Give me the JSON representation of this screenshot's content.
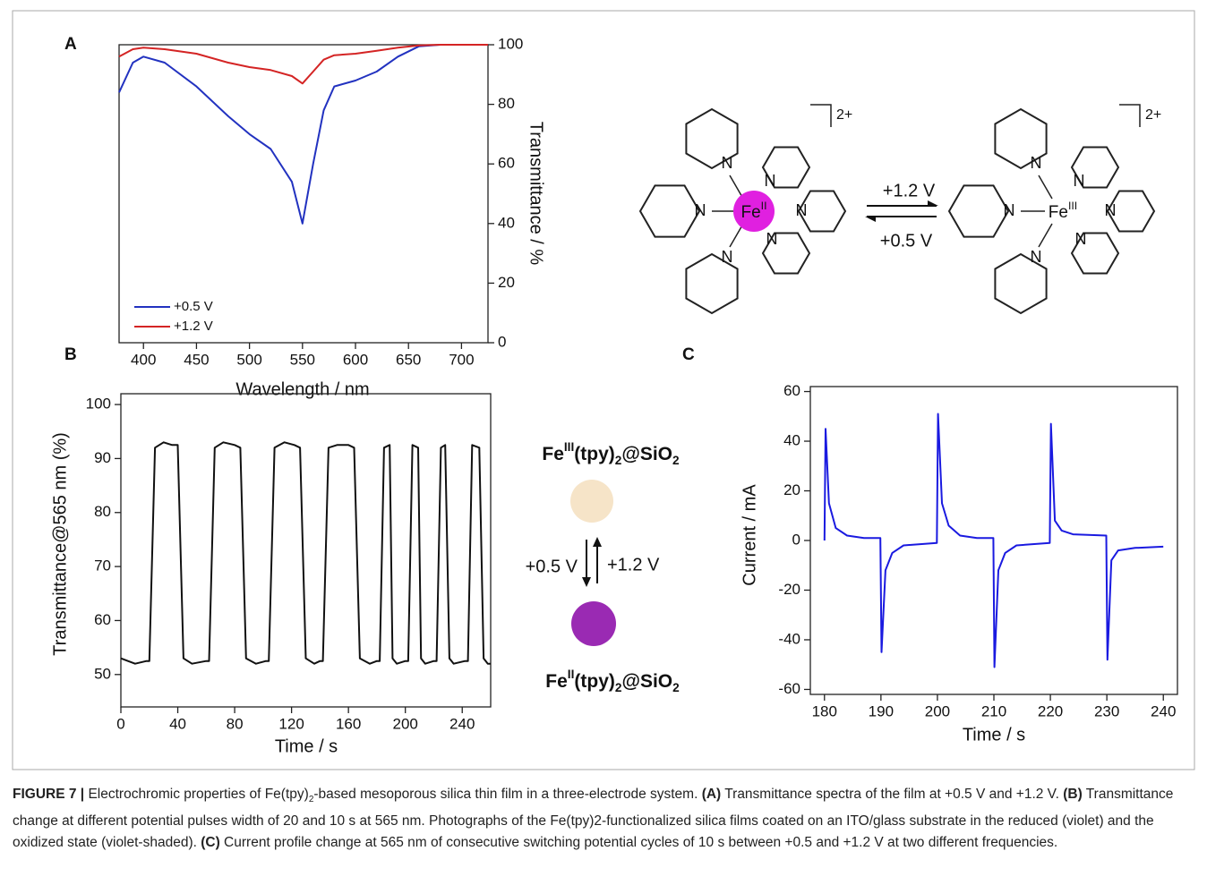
{
  "chart_data": [
    {
      "type": "line",
      "panel": "A",
      "xlabel": "Wavelength / nm",
      "ylabel": "Transmittance / %",
      "yaxis_side": "right",
      "legend": "lower left",
      "x": [
        377,
        390,
        400,
        420,
        450,
        480,
        500,
        520,
        540,
        550,
        560,
        570,
        580,
        600,
        620,
        640,
        660,
        680,
        725
      ],
      "series": [
        {
          "name": "+0.5 V",
          "color": "#2232c0",
          "values": [
            84,
            94,
            96,
            94,
            86,
            76,
            70,
            65,
            54,
            40,
            60,
            78,
            86,
            88,
            91,
            96,
            99.5,
            100,
            100
          ]
        },
        {
          "name": "+1.2 V",
          "color": "#d42424",
          "values": [
            96,
            98.5,
            99,
            98.5,
            97,
            94,
            92.5,
            91.5,
            89.5,
            87,
            91,
            95,
            96.5,
            97,
            98,
            99,
            99.8,
            100,
            100
          ]
        }
      ],
      "xlim": [
        377,
        725
      ],
      "xticks": [
        400,
        450,
        500,
        550,
        600,
        650,
        700
      ],
      "ylim": [
        0,
        100
      ],
      "yticks": [
        0,
        20,
        40,
        60,
        80,
        100
      ]
    },
    {
      "type": "line",
      "panel": "B",
      "xlabel": "Time / s",
      "ylabel": "Transmittance@565 nm (%)",
      "yaxis_side": "left",
      "x": [
        0,
        5,
        10,
        18,
        20,
        24,
        30,
        36,
        40,
        44,
        50,
        60,
        62,
        66,
        72,
        80,
        84,
        88,
        95,
        102,
        104,
        108,
        115,
        122,
        126,
        130,
        136,
        140,
        142,
        146,
        152,
        160,
        164,
        168,
        175,
        180,
        182,
        185,
        189,
        191,
        194,
        200,
        202,
        205,
        209,
        211,
        214,
        220,
        222,
        225,
        228,
        231,
        234,
        242,
        244,
        247,
        252,
        255,
        258,
        260
      ],
      "series": [
        {
          "color": "#111111",
          "values": [
            53,
            52.5,
            52,
            52.5,
            52.5,
            92,
            93,
            92.5,
            92.5,
            53,
            52,
            52.5,
            52.5,
            92,
            93,
            92.5,
            92,
            53,
            52,
            52.5,
            52.5,
            92,
            93,
            92.5,
            92,
            53,
            52,
            52.5,
            52.5,
            92,
            92.5,
            92.5,
            92,
            53,
            52,
            52.5,
            52.5,
            92,
            92.5,
            53,
            52,
            52.5,
            52.5,
            92.5,
            92,
            53,
            52,
            52.5,
            52.5,
            92,
            92.5,
            53,
            52,
            52.5,
            52.5,
            92.5,
            92,
            53,
            52,
            52
          ]
        }
      ],
      "xlim": [
        0,
        260
      ],
      "xticks": [
        0,
        40,
        80,
        120,
        160,
        200,
        240
      ],
      "ylim": [
        44,
        102
      ],
      "yticks": [
        50,
        60,
        70,
        80,
        90,
        100
      ]
    },
    {
      "type": "line",
      "panel": "C",
      "xlabel": "Time / s",
      "ylabel": "Current / mA",
      "yaxis_side": "left",
      "x": [
        180,
        180.2,
        180.8,
        182,
        184,
        187,
        189.9,
        190.1,
        190.8,
        192,
        194,
        199.9,
        200.1,
        200.8,
        202,
        204,
        207,
        209.9,
        210.1,
        210.8,
        212,
        214,
        219.9,
        220.1,
        220.8,
        222,
        224,
        229.9,
        230.1,
        230.8,
        232,
        235,
        240
      ],
      "series": [
        {
          "color": "#1a1ae0",
          "values": [
            0,
            45,
            15,
            5,
            2,
            1,
            1,
            -45,
            -12,
            -5,
            -2,
            -1,
            51,
            15,
            6,
            2,
            1,
            1,
            -51,
            -12,
            -5,
            -2,
            -1,
            47,
            8,
            4,
            2.5,
            2,
            -48,
            -8,
            -4,
            -3,
            -2.5
          ]
        }
      ],
      "xlim": [
        177.5,
        242.5
      ],
      "xticks": [
        180,
        190,
        200,
        210,
        220,
        230,
        240
      ],
      "ylim": [
        -62,
        62
      ],
      "yticks": [
        -60,
        -40,
        -20,
        0,
        20,
        40,
        60
      ]
    }
  ],
  "scheme": {
    "nitrogen": "N",
    "charge": "2+",
    "forward": "+1.2 V",
    "backward": "+0.5 V",
    "left_metal": [
      {
        "text": "Fe",
        "style": "normal"
      },
      {
        "text": "II",
        "style": "sup"
      }
    ],
    "right_metal": [
      {
        "text": "Fe",
        "style": "normal"
      },
      {
        "text": "III",
        "style": "sup"
      }
    ]
  },
  "photos": {
    "top": [
      {
        "text": "Fe",
        "style": "normal"
      },
      {
        "text": "III",
        "style": "sup"
      },
      {
        "text": "(tpy)",
        "style": "normal"
      },
      {
        "text": "2",
        "style": "sub"
      },
      {
        "text": "@SiO",
        "style": "normal"
      },
      {
        "text": "2",
        "style": "sub"
      }
    ],
    "bottom": [
      {
        "text": "Fe",
        "style": "normal"
      },
      {
        "text": "II",
        "style": "sup"
      },
      {
        "text": "(tpy)",
        "style": "normal"
      },
      {
        "text": "2",
        "style": "sub"
      },
      {
        "text": "@SiO",
        "style": "normal"
      },
      {
        "text": "2",
        "style": "sub"
      }
    ],
    "reduce": "+0.5 V",
    "oxidize": "+1.2 V"
  },
  "caption": [
    {
      "text": "FIGURE 7 |",
      "style": "bold"
    },
    {
      "text": " Electrochromic properties of Fe(tpy)",
      "style": "normal"
    },
    {
      "text": "2",
      "style": "sub"
    },
    {
      "text": "-based mesoporous silica thin film in a three-electrode system. ",
      "style": "normal"
    },
    {
      "text": "(A)",
      "style": "bold"
    },
    {
      "text": " Transmittance spectra of the film at +0.5 V and +1.2 V. ",
      "style": "normal"
    },
    {
      "text": "(B)",
      "style": "bold"
    },
    {
      "text": " Transmittance change at different potential pulses width of 20 and 10 s at 565 nm. Photographs of the Fe(tpy)2-functionalized silica films coated on an ITO/glass substrate in the reduced (violet) and the oxidized state (violet-shaded). ",
      "style": "normal"
    },
    {
      "text": "(C)",
      "style": "bold"
    },
    {
      "text": " Current profile change at 565 nm of consecutive switching potential cycles of 10 s between +0.5 and +1.2 V at two different frequencies.",
      "style": "normal"
    }
  ]
}
